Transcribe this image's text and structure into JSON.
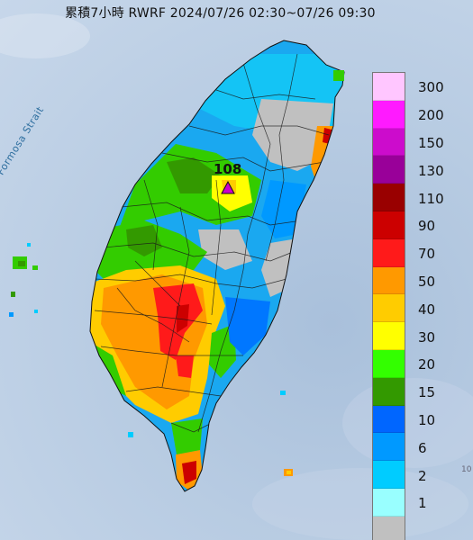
{
  "title": "累積7小時 RWRF 2024/07/26 02:30~07/26 09:30",
  "max_value": "108",
  "strait_label": "Formosa Strait",
  "corner_mark": "10",
  "legend": [
    {
      "label": "300",
      "color": "#ffc6ff"
    },
    {
      "label": "200",
      "color": "#ff1aff"
    },
    {
      "label": "150",
      "color": "#cc0ccc"
    },
    {
      "label": "130",
      "color": "#990099"
    },
    {
      "label": "110",
      "color": "#990000"
    },
    {
      "label": "90",
      "color": "#cc0000"
    },
    {
      "label": "70",
      "color": "#ff1a1a"
    },
    {
      "label": "50",
      "color": "#ff9900"
    },
    {
      "label": "40",
      "color": "#ffcc00"
    },
    {
      "label": "30",
      "color": "#ffff00"
    },
    {
      "label": "20",
      "color": "#33ff00"
    },
    {
      "label": "15",
      "color": "#339900"
    },
    {
      "label": "10",
      "color": "#0066ff"
    },
    {
      "label": "6",
      "color": "#0099ff"
    },
    {
      "label": "2",
      "color": "#00ccff"
    },
    {
      "label": "1",
      "color": "#99ffff"
    },
    {
      "label": "",
      "color": "#c0c0c0"
    }
  ]
}
